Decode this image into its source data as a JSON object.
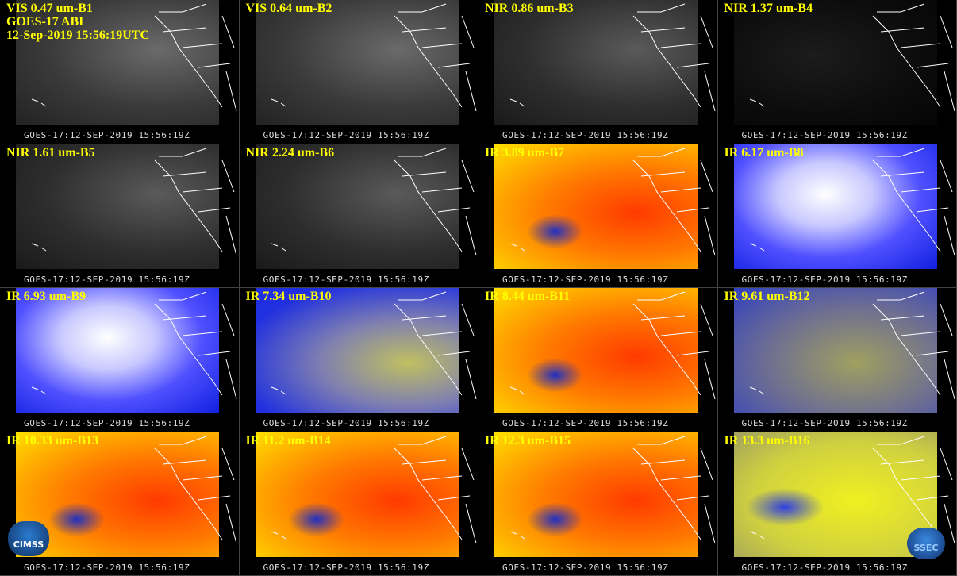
{
  "header": {
    "satellite": "GOES-17 ABI",
    "datetime": "12-Sep-2019 15:56:19UTC"
  },
  "footer": "GOES-17:12-SEP-2019 15:56:19Z",
  "panels": [
    {
      "label": "VIS 0.47 um-B1"
    },
    {
      "label": "VIS 0.64 um-B2"
    },
    {
      "label": "NIR 0.86 um-B3"
    },
    {
      "label": "NIR 1.37 um-B4"
    },
    {
      "label": "NIR 1.61 um-B5"
    },
    {
      "label": "NIR 2.24 um-B6"
    },
    {
      "label": "IR 3.89 um-B7"
    },
    {
      "label": "IR 6.17 um-B8"
    },
    {
      "label": "IR 6.93 um-B9"
    },
    {
      "label": "IR 7.34 um-B10"
    },
    {
      "label": "IR 8.44 um-B11"
    },
    {
      "label": "IR 9.61 um-B12"
    },
    {
      "label": "IR 10.33 um-B13"
    },
    {
      "label": "IR 11.2 um-B14"
    },
    {
      "label": "IR 12.3 um-B15"
    },
    {
      "label": "IR 13.3 um-B16"
    }
  ],
  "logos": {
    "left": "CIMSS",
    "right": "SSEC"
  }
}
